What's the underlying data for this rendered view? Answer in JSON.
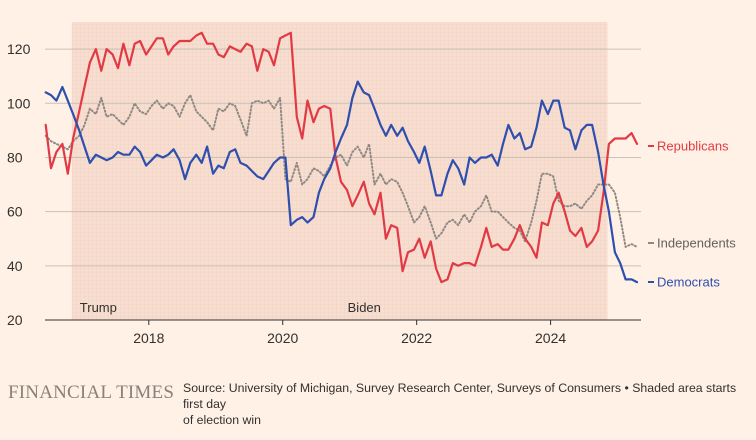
{
  "chart_data": {
    "type": "line",
    "title": "",
    "xlabel": "",
    "ylabel": "",
    "xlim": [
      2016.45,
      2025.35
    ],
    "ylim": [
      20,
      130
    ],
    "yticks": [
      20,
      40,
      60,
      80,
      100,
      120
    ],
    "xticks": [
      2018,
      2020,
      2022,
      2024
    ],
    "shaded_periods": [
      {
        "label": "Trump",
        "start": 2016.85,
        "end": 2020.85
      },
      {
        "label": "Biden",
        "start": 2020.85,
        "end": 2024.85
      }
    ],
    "series": [
      {
        "name": "Republicans",
        "color": "#E23A44",
        "style": "solid",
        "x": [
          2016.46,
          2016.54,
          2016.62,
          2016.71,
          2016.79,
          2016.87,
          2016.96,
          2017.04,
          2017.12,
          2017.21,
          2017.29,
          2017.37,
          2017.46,
          2017.54,
          2017.62,
          2017.71,
          2017.79,
          2017.87,
          2017.96,
          2018.04,
          2018.12,
          2018.21,
          2018.29,
          2018.37,
          2018.46,
          2018.54,
          2018.62,
          2018.71,
          2018.79,
          2018.87,
          2018.96,
          2019.04,
          2019.12,
          2019.21,
          2019.29,
          2019.37,
          2019.46,
          2019.54,
          2019.62,
          2019.71,
          2019.79,
          2019.87,
          2019.96,
          2020.04,
          2020.12,
          2020.21,
          2020.29,
          2020.37,
          2020.46,
          2020.54,
          2020.62,
          2020.71,
          2020.79,
          2020.87,
          2020.96,
          2021.04,
          2021.12,
          2021.21,
          2021.29,
          2021.37,
          2021.46,
          2021.54,
          2021.62,
          2021.71,
          2021.79,
          2021.87,
          2021.96,
          2022.04,
          2022.12,
          2022.21,
          2022.29,
          2022.37,
          2022.46,
          2022.54,
          2022.62,
          2022.71,
          2022.79,
          2022.87,
          2022.96,
          2023.04,
          2023.12,
          2023.21,
          2023.29,
          2023.37,
          2023.46,
          2023.54,
          2023.62,
          2023.71,
          2023.79,
          2023.87,
          2023.96,
          2024.04,
          2024.12,
          2024.21,
          2024.29,
          2024.37,
          2024.46,
          2024.54,
          2024.62,
          2024.71,
          2024.79,
          2024.87,
          2024.96,
          2025.04,
          2025.12,
          2025.21,
          2025.29
        ],
        "values": [
          92,
          76,
          82,
          85,
          74,
          87,
          97,
          106,
          115,
          120,
          112,
          120,
          118,
          113,
          122,
          114,
          122,
          123,
          118,
          121,
          124,
          124,
          118,
          121,
          123,
          123,
          123,
          125,
          126,
          122,
          122,
          118,
          117,
          121,
          120,
          119,
          122,
          121,
          112,
          120,
          119,
          114,
          124,
          125,
          126,
          95,
          87,
          101,
          93,
          98,
          99,
          98,
          80,
          71,
          68,
          62,
          66,
          71,
          63,
          59,
          67,
          50,
          55,
          54,
          38,
          45,
          46,
          50,
          43,
          49,
          39,
          34,
          35,
          41,
          40,
          41,
          41,
          40,
          47,
          54,
          47,
          48,
          46,
          46,
          50,
          55,
          50,
          47,
          43,
          56,
          55,
          63,
          67,
          60,
          53,
          51,
          54,
          47,
          49,
          53,
          67,
          85,
          87,
          87,
          87,
          89,
          85
        ]
      },
      {
        "name": "Independents",
        "color": "#8F8984",
        "style": "dotted",
        "x": [
          2016.46,
          2016.54,
          2016.62,
          2016.71,
          2016.79,
          2016.87,
          2016.96,
          2017.04,
          2017.12,
          2017.21,
          2017.29,
          2017.37,
          2017.46,
          2017.54,
          2017.62,
          2017.71,
          2017.79,
          2017.87,
          2017.96,
          2018.04,
          2018.12,
          2018.21,
          2018.29,
          2018.37,
          2018.46,
          2018.54,
          2018.62,
          2018.71,
          2018.79,
          2018.87,
          2018.96,
          2019.04,
          2019.12,
          2019.21,
          2019.29,
          2019.37,
          2019.46,
          2019.54,
          2019.62,
          2019.71,
          2019.79,
          2019.87,
          2019.96,
          2020.04,
          2020.12,
          2020.21,
          2020.29,
          2020.37,
          2020.46,
          2020.54,
          2020.62,
          2020.71,
          2020.79,
          2020.87,
          2020.96,
          2021.04,
          2021.12,
          2021.21,
          2021.29,
          2021.37,
          2021.46,
          2021.54,
          2021.62,
          2021.71,
          2021.79,
          2021.87,
          2021.96,
          2022.04,
          2022.12,
          2022.21,
          2022.29,
          2022.37,
          2022.46,
          2022.54,
          2022.62,
          2022.71,
          2022.79,
          2022.87,
          2022.96,
          2023.04,
          2023.12,
          2023.21,
          2023.29,
          2023.37,
          2023.46,
          2023.54,
          2023.62,
          2023.71,
          2023.79,
          2023.87,
          2023.96,
          2024.04,
          2024.12,
          2024.21,
          2024.29,
          2024.37,
          2024.46,
          2024.54,
          2024.62,
          2024.71,
          2024.79,
          2024.87,
          2024.96,
          2025.04,
          2025.12,
          2025.21,
          2025.29
        ],
        "values": [
          88,
          86,
          85,
          84,
          83,
          86,
          88,
          92,
          98,
          96,
          102,
          95,
          96,
          94,
          92,
          95,
          100,
          97,
          96,
          99,
          101,
          98,
          100,
          99,
          95,
          100,
          103,
          97,
          95,
          93,
          90,
          98,
          97,
          100,
          99,
          94,
          88,
          100,
          101,
          100,
          101,
          98,
          102,
          72,
          71,
          78,
          70,
          72,
          76,
          75,
          73,
          77,
          80,
          81,
          77,
          82,
          84,
          80,
          85,
          70,
          74,
          70,
          72,
          71,
          67,
          62,
          56,
          58,
          62,
          56,
          50,
          52,
          56,
          57,
          55,
          59,
          56,
          60,
          62,
          66,
          60,
          60,
          58,
          56,
          54,
          53,
          49,
          56,
          64,
          74,
          74,
          73,
          64,
          62,
          62,
          63,
          61,
          64,
          66,
          70,
          70,
          70,
          67,
          58,
          47,
          48,
          47
        ]
      },
      {
        "name": "Democrats",
        "color": "#2F4FAE",
        "style": "solid",
        "x": [
          2016.46,
          2016.54,
          2016.62,
          2016.71,
          2016.79,
          2016.87,
          2016.96,
          2017.04,
          2017.12,
          2017.21,
          2017.29,
          2017.37,
          2017.46,
          2017.54,
          2017.62,
          2017.71,
          2017.79,
          2017.87,
          2017.96,
          2018.04,
          2018.12,
          2018.21,
          2018.29,
          2018.37,
          2018.46,
          2018.54,
          2018.62,
          2018.71,
          2018.79,
          2018.87,
          2018.96,
          2019.04,
          2019.12,
          2019.21,
          2019.29,
          2019.37,
          2019.46,
          2019.54,
          2019.62,
          2019.71,
          2019.79,
          2019.87,
          2019.96,
          2020.04,
          2020.12,
          2020.21,
          2020.29,
          2020.37,
          2020.46,
          2020.54,
          2020.62,
          2020.71,
          2020.79,
          2020.87,
          2020.96,
          2021.04,
          2021.12,
          2021.21,
          2021.29,
          2021.37,
          2021.46,
          2021.54,
          2021.62,
          2021.71,
          2021.79,
          2021.87,
          2021.96,
          2022.04,
          2022.12,
          2022.21,
          2022.29,
          2022.37,
          2022.46,
          2022.54,
          2022.62,
          2022.71,
          2022.79,
          2022.87,
          2022.96,
          2023.04,
          2023.12,
          2023.21,
          2023.29,
          2023.37,
          2023.46,
          2023.54,
          2023.62,
          2023.71,
          2023.79,
          2023.87,
          2023.96,
          2024.04,
          2024.12,
          2024.21,
          2024.29,
          2024.37,
          2024.46,
          2024.54,
          2024.62,
          2024.71,
          2024.79,
          2024.87,
          2024.96,
          2025.04,
          2025.12,
          2025.21,
          2025.29
        ],
        "values": [
          104,
          103,
          101,
          106,
          101,
          96,
          90,
          84,
          78,
          81,
          80,
          79,
          80,
          82,
          81,
          81,
          84,
          82,
          77,
          79,
          81,
          80,
          81,
          83,
          79,
          72,
          78,
          81,
          78,
          84,
          74,
          77,
          76,
          82,
          83,
          78,
          77,
          75,
          73,
          72,
          75,
          78,
          80,
          80,
          55,
          57,
          58,
          56,
          58,
          67,
          72,
          76,
          82,
          87,
          92,
          102,
          108,
          104,
          103,
          98,
          92,
          88,
          92,
          88,
          91,
          86,
          82,
          78,
          84,
          75,
          66,
          66,
          74,
          79,
          76,
          70,
          80,
          78,
          80,
          80,
          81,
          77,
          85,
          92,
          87,
          89,
          83,
          84,
          91,
          101,
          96,
          101,
          101,
          91,
          90,
          83,
          90,
          92,
          92,
          82,
          70,
          60,
          45,
          41,
          35,
          35,
          34
        ]
      }
    ],
    "legend": "end-of-line labels at right"
  },
  "footer": {
    "brand": "FINANCIAL TIMES",
    "source_line1": "Source: University of Michigan, Survey Research Center, Surveys of Consumers • Shaded area starts first day",
    "source_line2": "of election win"
  },
  "colors": {
    "background": "#FFF1E5",
    "shade": "#F9E1D3",
    "grid": "#CCC1B7",
    "axis": "#33302E"
  }
}
